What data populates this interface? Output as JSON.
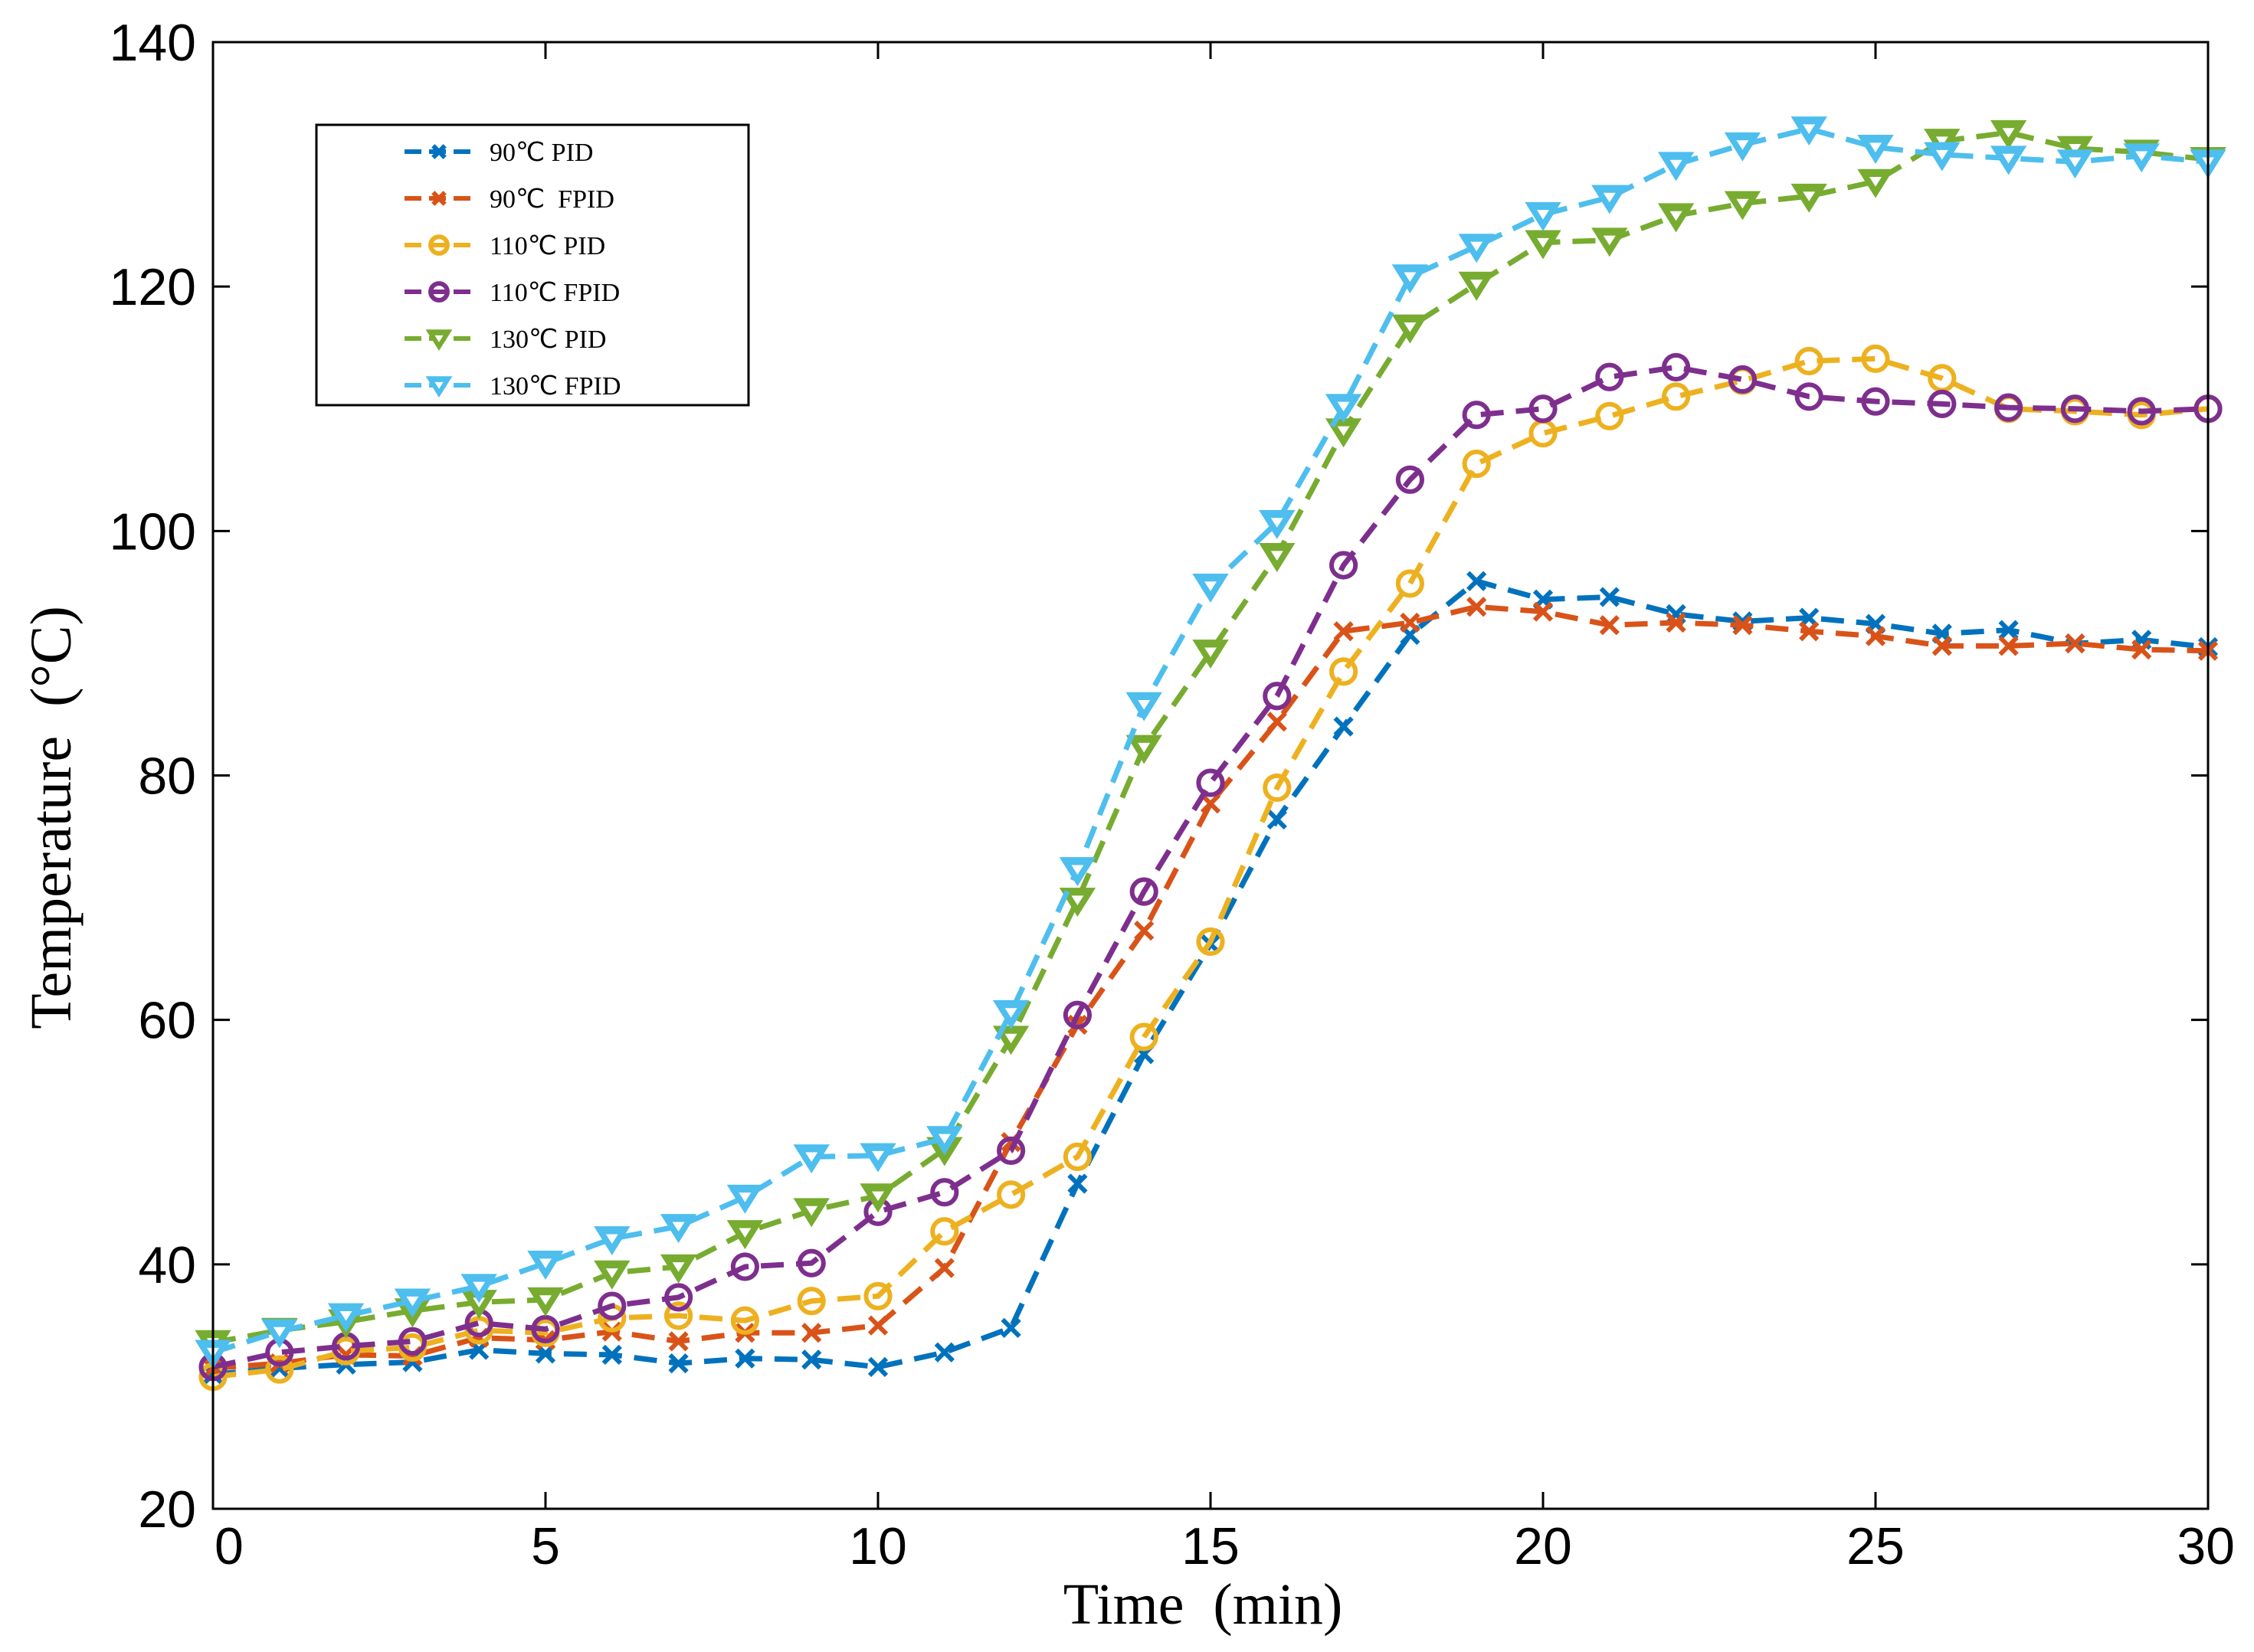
{
  "chart_data": {
    "type": "line",
    "title": "",
    "xlabel": "Time  (min)",
    "ylabel": "Temperature  (°C)",
    "xlim": [
      0,
      30
    ],
    "ylim": [
      20,
      140
    ],
    "xticks": [
      0,
      5,
      10,
      15,
      20,
      25,
      30
    ],
    "yticks": [
      20,
      40,
      60,
      80,
      100,
      120,
      140
    ],
    "grid": false,
    "legend_position": "top-left",
    "x": [
      0,
      1,
      2,
      3,
      4,
      5,
      6,
      7,
      8,
      9,
      10,
      11,
      12,
      13,
      14,
      15,
      16,
      17,
      18,
      19,
      20,
      21,
      22,
      23,
      24,
      25,
      26,
      27,
      28,
      29,
      30
    ],
    "series": [
      {
        "name": "90℃ PID",
        "color": "#0072BD",
        "marker": "x",
        "values": [
          31.0,
          31.5,
          31.8,
          32.0,
          33.0,
          32.7,
          32.6,
          31.9,
          32.3,
          32.2,
          31.6,
          32.8,
          34.8,
          46.6,
          57.2,
          66.2,
          76.4,
          84.0,
          91.5,
          95.9,
          94.4,
          94.6,
          93.2,
          92.6,
          92.9,
          92.4,
          91.6,
          91.9,
          90.8,
          91.1,
          90.5
        ]
      },
      {
        "name": "90℃  FPID",
        "color": "#D95319",
        "marker": "x",
        "values": [
          31.5,
          31.9,
          32.6,
          32.5,
          34.0,
          33.8,
          34.5,
          33.7,
          34.4,
          34.4,
          35.0,
          39.7,
          50.0,
          59.6,
          67.3,
          77.7,
          84.4,
          91.8,
          92.5,
          93.8,
          93.4,
          92.3,
          92.5,
          92.3,
          91.8,
          91.4,
          90.6,
          90.6,
          90.8,
          90.3,
          90.2
        ]
      },
      {
        "name": "110℃ PID",
        "color": "#EDB120",
        "marker": "o",
        "values": [
          30.8,
          31.4,
          32.9,
          33.2,
          34.6,
          34.4,
          35.6,
          35.8,
          35.4,
          37.0,
          37.4,
          42.7,
          45.7,
          48.8,
          58.6,
          66.4,
          79.0,
          88.5,
          95.7,
          105.5,
          108.0,
          109.4,
          111.0,
          112.3,
          113.9,
          114.1,
          112.5,
          110.0,
          109.8,
          109.5,
          110.0
        ]
      },
      {
        "name": "110℃ FPID",
        "color": "#7E2F8E",
        "marker": "o",
        "values": [
          31.6,
          32.8,
          33.3,
          33.7,
          35.2,
          34.7,
          36.6,
          37.3,
          39.8,
          40.1,
          44.3,
          45.9,
          49.3,
          60.4,
          70.5,
          79.4,
          86.5,
          97.2,
          104.2,
          109.5,
          110.0,
          112.6,
          113.4,
          112.4,
          111.0,
          110.6,
          110.4,
          110.1,
          110.0,
          109.8,
          110.0
        ]
      },
      {
        "name": "130℃ PID",
        "color": "#77AC30",
        "marker": "v",
        "values": [
          33.6,
          34.6,
          35.3,
          36.2,
          36.9,
          37.1,
          39.3,
          39.8,
          42.6,
          44.4,
          45.6,
          49.4,
          58.5,
          69.8,
          82.3,
          90.1,
          98.0,
          108.2,
          116.7,
          120.2,
          123.6,
          123.8,
          125.8,
          126.8,
          127.4,
          128.6,
          131.9,
          132.6,
          131.3,
          131.0,
          130.4
        ]
      },
      {
        "name": "130℃ FPID",
        "color": "#4DBEEE",
        "marker": "v",
        "values": [
          32.8,
          34.5,
          35.8,
          37.0,
          38.2,
          40.1,
          42.1,
          43.1,
          45.5,
          48.8,
          48.9,
          50.3,
          60.6,
          72.3,
          85.8,
          95.5,
          100.7,
          110.2,
          120.8,
          123.3,
          125.9,
          127.3,
          130.0,
          131.6,
          132.9,
          131.4,
          130.8,
          130.5,
          130.2,
          130.7,
          130.2
        ]
      }
    ]
  }
}
